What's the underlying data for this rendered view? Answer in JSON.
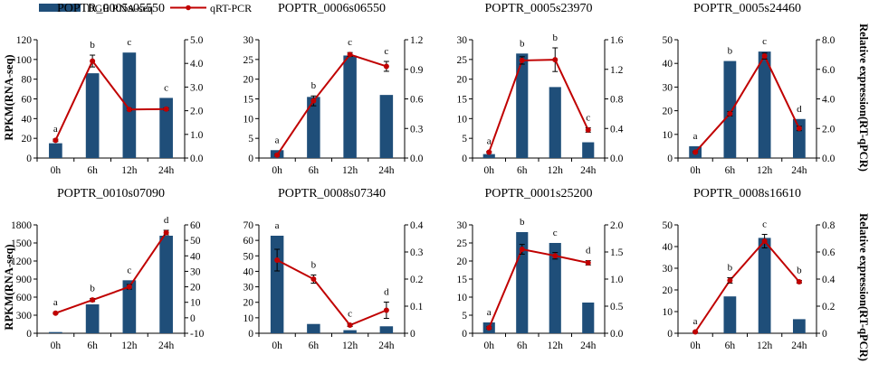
{
  "legend": {
    "bar_label": "DGE RNA-seq",
    "line_label": "qRT-PCR"
  },
  "y_left_label": "RPKM(RNA-seq)",
  "y_right_label": "Relative expression(RT-qPCR)",
  "colors": {
    "bar": "#1f4e79",
    "line": "#c00000"
  },
  "chart_data": [
    {
      "type": "bar+line",
      "title": "POPTR_0005s05550",
      "categories": [
        "0h",
        "6h",
        "12h",
        "24h"
      ],
      "series": [
        {
          "name": "DGE RNA-seq",
          "axis": "left",
          "values": [
            15,
            86,
            107,
            61
          ]
        },
        {
          "name": "qRT-PCR",
          "axis": "right",
          "values": [
            0.75,
            4.1,
            2.05,
            2.07
          ],
          "errors": [
            0.05,
            0.25,
            0.05,
            0.05
          ]
        }
      ],
      "letters": [
        "a",
        "b",
        "c",
        "c"
      ],
      "ylim_left": [
        0,
        120
      ],
      "ticks_left": [
        "0",
        "20",
        "40",
        "60",
        "80",
        "100",
        "120"
      ],
      "ylim_right": [
        0,
        5
      ],
      "ticks_right": [
        "0.0",
        "1.0",
        "2.0",
        "3.0",
        "4.0",
        "5.0"
      ]
    },
    {
      "type": "bar+line",
      "title": "POPTR_0006s06550",
      "categories": [
        "0h",
        "6h",
        "12h",
        "24h"
      ],
      "series": [
        {
          "name": "DGE RNA-seq",
          "axis": "left",
          "values": [
            2,
            15.5,
            26,
            16
          ]
        },
        {
          "name": "qRT-PCR",
          "axis": "right",
          "values": [
            0.03,
            0.58,
            1.05,
            0.93
          ],
          "errors": [
            0.01,
            0.05,
            0.02,
            0.05
          ]
        }
      ],
      "letters": [
        "a",
        "b",
        "c",
        "c"
      ],
      "ylim_left": [
        0,
        30
      ],
      "ticks_left": [
        "0",
        "5",
        "10",
        "15",
        "20",
        "25",
        "30"
      ],
      "ylim_right": [
        0,
        1.2
      ],
      "ticks_right": [
        "0.0",
        "0.3",
        "0.6",
        "0.9",
        "1.2"
      ]
    },
    {
      "type": "bar+line",
      "title": "POPTR_0005s23970",
      "categories": [
        "0h",
        "6h",
        "12h",
        "24h"
      ],
      "series": [
        {
          "name": "DGE RNA-seq",
          "axis": "left",
          "values": [
            1,
            26.5,
            18,
            4
          ]
        },
        {
          "name": "qRT-PCR",
          "axis": "right",
          "values": [
            0.08,
            1.32,
            1.33,
            0.38
          ],
          "errors": [
            0.01,
            0.05,
            0.16,
            0.03
          ]
        }
      ],
      "letters": [
        "a",
        "b",
        "b",
        "c"
      ],
      "ylim_left": [
        0,
        30
      ],
      "ticks_left": [
        "0",
        "5",
        "10",
        "15",
        "20",
        "25",
        "30"
      ],
      "ylim_right": [
        0,
        1.6
      ],
      "ticks_right": [
        "0.0",
        "0.4",
        "0.8",
        "1.2",
        "1.6"
      ]
    },
    {
      "type": "bar+line",
      "title": "POPTR_0005s24460",
      "categories": [
        "0h",
        "6h",
        "12h",
        "24h"
      ],
      "series": [
        {
          "name": "DGE RNA-seq",
          "axis": "left",
          "values": [
            5,
            41,
            45,
            16.5
          ]
        },
        {
          "name": "qRT-PCR",
          "axis": "right",
          "values": [
            0.4,
            3.0,
            6.9,
            2.0
          ],
          "errors": [
            0.05,
            0.15,
            0.2,
            0.15
          ]
        }
      ],
      "letters": [
        "a",
        "b",
        "c",
        "d"
      ],
      "ylim_left": [
        0,
        50
      ],
      "ticks_left": [
        "0",
        "10",
        "20",
        "30",
        "40",
        "50"
      ],
      "ylim_right": [
        0,
        8
      ],
      "ticks_right": [
        "0.0",
        "2.0",
        "4.0",
        "6.0",
        "8.0"
      ]
    },
    {
      "type": "bar+line",
      "title": "POPTR_0010s07090",
      "categories": [
        "0h",
        "6h",
        "12h",
        "24h"
      ],
      "series": [
        {
          "name": "DGE RNA-seq",
          "axis": "left",
          "values": [
            20,
            480,
            880,
            1620
          ]
        },
        {
          "name": "qRT-PCR",
          "axis": "right",
          "values": [
            3,
            11.5,
            20,
            55
          ],
          "errors": [
            0.5,
            1,
            1.5,
            1.5
          ]
        }
      ],
      "letters": [
        "a",
        "b",
        "c",
        "d"
      ],
      "ylim_left": [
        0,
        1800
      ],
      "ticks_left": [
        "0",
        "300",
        "600",
        "900",
        "1200",
        "1500",
        "1800"
      ],
      "ylim_right": [
        -10,
        60
      ],
      "ticks_right": [
        "-10",
        "0",
        "10",
        "20",
        "30",
        "40",
        "50",
        "60"
      ]
    },
    {
      "type": "bar+line",
      "title": "POPTR_0008s07340",
      "categories": [
        "0h",
        "6h",
        "12h",
        "24h"
      ],
      "series": [
        {
          "name": "DGE RNA-seq",
          "axis": "left",
          "values": [
            63,
            6,
            2,
            4.5
          ]
        },
        {
          "name": "qRT-PCR",
          "axis": "right",
          "values": [
            0.27,
            0.2,
            0.03,
            0.085
          ],
          "errors": [
            0.04,
            0.015,
            0.005,
            0.03
          ]
        }
      ],
      "letters": [
        "a",
        "b",
        "c",
        "d"
      ],
      "ylim_left": [
        0,
        70
      ],
      "ticks_left": [
        "0",
        "10",
        "20",
        "30",
        "40",
        "50",
        "60",
        "70"
      ],
      "ylim_right": [
        0,
        0.4
      ],
      "ticks_right": [
        "0",
        "0.1",
        "0.2",
        "0.3",
        "0.4"
      ]
    },
    {
      "type": "bar+line",
      "title": "POPTR_0001s25200",
      "categories": [
        "0h",
        "6h",
        "12h",
        "24h"
      ],
      "series": [
        {
          "name": "DGE RNA-seq",
          "axis": "left",
          "values": [
            3,
            28,
            25,
            8.5
          ]
        },
        {
          "name": "qRT-PCR",
          "axis": "right",
          "values": [
            0.1,
            1.55,
            1.43,
            1.3
          ],
          "errors": [
            0.02,
            0.09,
            0.06,
            0.04
          ]
        }
      ],
      "letters": [
        "a",
        "b",
        "c",
        "d"
      ],
      "ylim_left": [
        0,
        30
      ],
      "ticks_left": [
        "0",
        "5",
        "10",
        "15",
        "20",
        "25",
        "30"
      ],
      "ylim_right": [
        0,
        2
      ],
      "ticks_right": [
        "0.0",
        "0.5",
        "1.0",
        "1.5",
        "2.0"
      ]
    },
    {
      "type": "bar+line",
      "title": "POPTR_0008s16610",
      "categories": [
        "0h",
        "6h",
        "12h",
        "24h"
      ],
      "series": [
        {
          "name": "DGE RNA-seq",
          "axis": "left",
          "values": [
            0,
            17,
            44,
            6.5
          ]
        },
        {
          "name": "qRT-PCR",
          "axis": "right",
          "values": [
            0.01,
            0.39,
            0.68,
            0.38
          ],
          "errors": [
            0.005,
            0.02,
            0.05,
            0.01
          ]
        }
      ],
      "letters": [
        "a",
        "b",
        "c",
        "b"
      ],
      "ylim_left": [
        0,
        50
      ],
      "ticks_left": [
        "0",
        "10",
        "20",
        "30",
        "40",
        "50"
      ],
      "ylim_right": [
        0,
        0.8
      ],
      "ticks_right": [
        "0",
        "0.2",
        "0.4",
        "0.6",
        "0.8"
      ]
    }
  ]
}
